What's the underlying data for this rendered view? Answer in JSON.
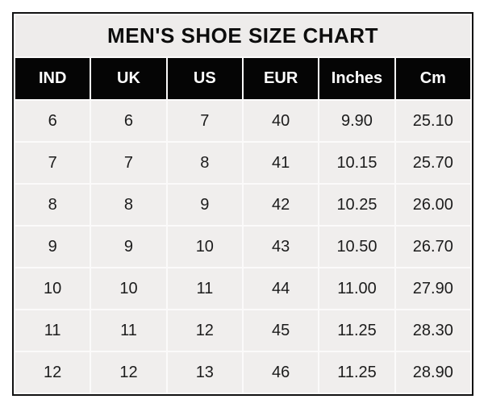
{
  "page_title": "MEN'S SHOE SIZE CHART",
  "chart_data": {
    "type": "table",
    "title": "MEN'S SHOE SIZE CHART",
    "columns": [
      "IND",
      "UK",
      "US",
      "EUR",
      "Inches",
      "Cm"
    ],
    "rows": [
      [
        "6",
        "6",
        "7",
        "40",
        "9.90",
        "25.10"
      ],
      [
        "7",
        "7",
        "8",
        "41",
        "10.15",
        "25.70"
      ],
      [
        "8",
        "8",
        "9",
        "42",
        "10.25",
        "26.00"
      ],
      [
        "9",
        "9",
        "10",
        "43",
        "10.50",
        "26.70"
      ],
      [
        "10",
        "10",
        "11",
        "44",
        "11.00",
        "27.90"
      ],
      [
        "11",
        "11",
        "12",
        "45",
        "11.25",
        "28.30"
      ],
      [
        "12",
        "12",
        "13",
        "46",
        "11.25",
        "28.90"
      ]
    ],
    "layout": {
      "grid": "thin white gridlines between cells",
      "header_style": "black background, white bold text",
      "title_style": "light gray band, black bold centered text"
    }
  },
  "colors": {
    "page_bg": "#ffffff",
    "outer_border": "#111111",
    "grid_line": "#fbfafa",
    "title_bg": "#eeeceb",
    "header_bg": "#050505",
    "header_text": "#ffffff",
    "cell_bg": "#f0eeed",
    "cell_text": "#1c1c1c"
  }
}
